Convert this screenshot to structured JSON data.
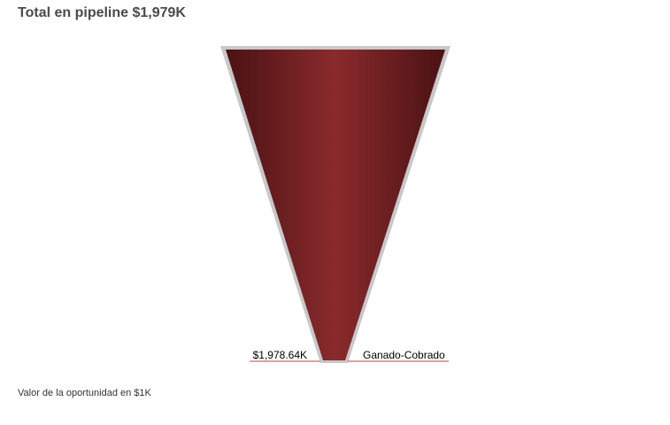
{
  "chart_data": {
    "type": "funnel",
    "title": "Total en pipeline $1,979K",
    "stages": [
      {
        "name": "Ganado-Cobrado",
        "value": 1978.64,
        "value_label": "$1,978.64K"
      }
    ],
    "footnote": "Valor de la oportunidad en $1K",
    "colors": {
      "fill_dark": "#4a1214",
      "fill_light": "#8a2a2c",
      "border": "#c8c8c8",
      "label_underline": "#b94a4c"
    }
  }
}
